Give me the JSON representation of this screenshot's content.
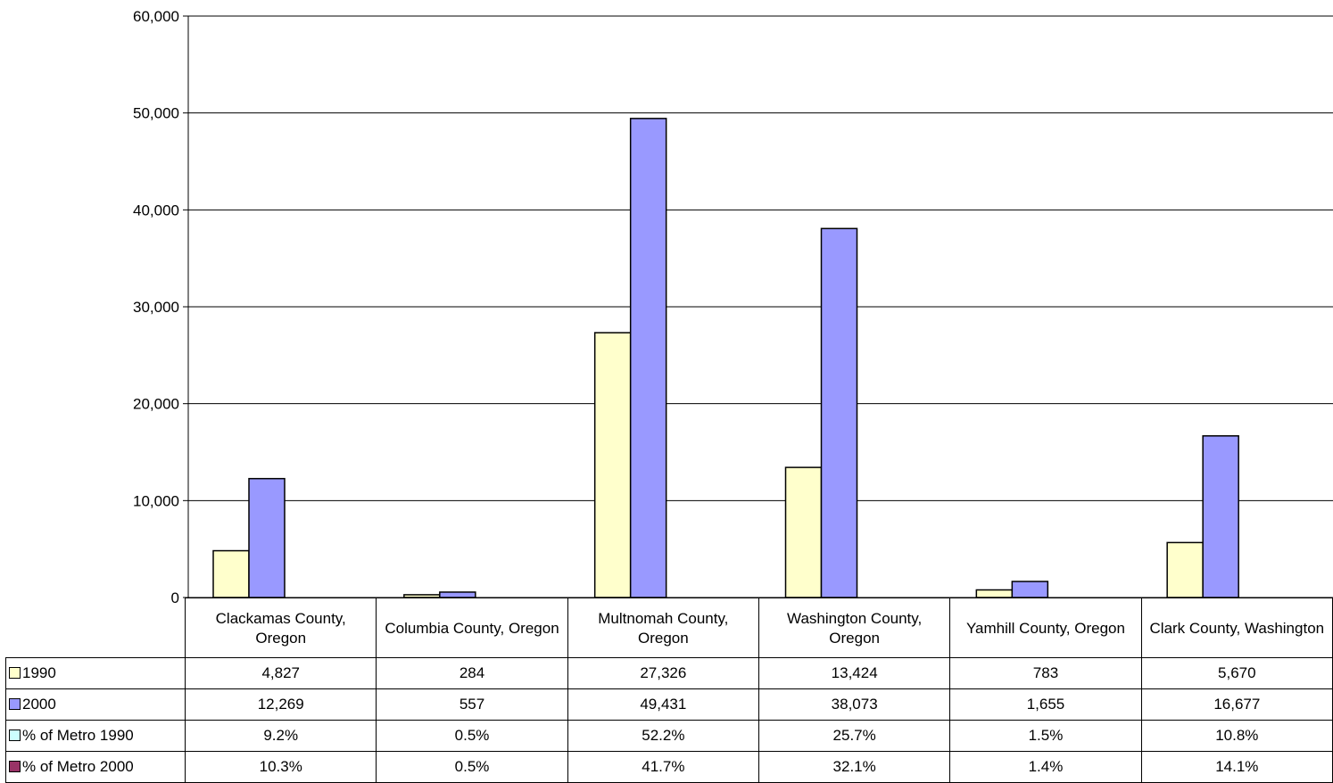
{
  "chart_data": {
    "type": "bar",
    "title": "",
    "xlabel": "",
    "ylabel": "",
    "ylim": [
      0,
      60000
    ],
    "yticks": [
      0,
      10000,
      20000,
      30000,
      40000,
      50000,
      60000
    ],
    "ytick_labels": [
      "0",
      "10,000",
      "20,000",
      "30,000",
      "40,000",
      "50,000",
      "60,000"
    ],
    "grid": true,
    "legend": "data-table",
    "categories": [
      "Clackamas County, Oregon",
      "Columbia County, Oregon",
      "Multnomah County, Oregon",
      "Washington County, Oregon",
      "Yamhill County, Oregon",
      "Clark County, Washington"
    ],
    "series": [
      {
        "name": "1990",
        "color": "#FFFFCC",
        "values": [
          4827,
          284,
          27326,
          13424,
          783,
          5670
        ],
        "labels": [
          "4,827",
          "284",
          "27,326",
          "13,424",
          "783",
          "5,670"
        ],
        "plotted": true
      },
      {
        "name": "2000",
        "color": "#9999FF",
        "values": [
          12269,
          557,
          49431,
          38073,
          1655,
          16677
        ],
        "labels": [
          "12,269",
          "557",
          "49,431",
          "38,073",
          "1,655",
          "16,677"
        ],
        "plotted": true
      },
      {
        "name": "% of Metro 1990",
        "color": "#CCFFFF",
        "values": [
          9.2,
          0.5,
          52.2,
          25.7,
          1.5,
          10.8
        ],
        "labels": [
          "9.2%",
          "0.5%",
          "52.2%",
          "25.7%",
          "1.5%",
          "10.8%"
        ],
        "plotted": false
      },
      {
        "name": "% of Metro 2000",
        "color": "#993366",
        "values": [
          10.3,
          0.5,
          41.7,
          32.1,
          1.4,
          14.1
        ],
        "labels": [
          "10.3%",
          "0.5%",
          "41.7%",
          "32.1%",
          "1.4%",
          "14.1%"
        ],
        "plotted": false
      }
    ]
  }
}
